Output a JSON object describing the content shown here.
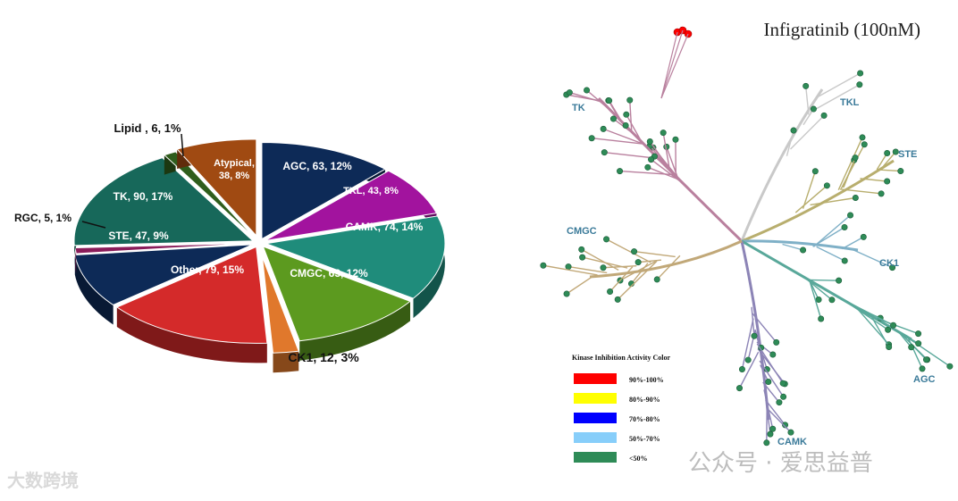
{
  "chart_data": [
    {
      "type": "pie",
      "slices": [
        {
          "name": "AGC",
          "value": 63,
          "pct": 12,
          "label": "AGC, 63, 12%",
          "color": "#0d2a57"
        },
        {
          "name": "TKL",
          "value": 43,
          "pct": 8,
          "label": "TKL, 43, 8%",
          "color": "#a2139e"
        },
        {
          "name": "CAMK",
          "value": 74,
          "pct": 14,
          "label": "CAMK, 74, 14%",
          "color": "#1f8c7b"
        },
        {
          "name": "CMGC",
          "value": 63,
          "pct": 12,
          "label": "CMGC, 63, 12%",
          "color": "#5c9a1f"
        },
        {
          "name": "CK1",
          "value": 12,
          "pct": 3,
          "label": "CK1, 12, 3%",
          "color": "#e0782c"
        },
        {
          "name": "Other",
          "value": 79,
          "pct": 15,
          "label": "Other, 79, 15%",
          "color": "#d42a2a"
        },
        {
          "name": "STE",
          "value": 47,
          "pct": 9,
          "label": "STE, 47, 9%",
          "color": "#0d2a57"
        },
        {
          "name": "RGC",
          "value": 5,
          "pct": 1,
          "label": "RGC, 5, 1%",
          "color": "#8a1c5a"
        },
        {
          "name": "TK",
          "value": 90,
          "pct": 17,
          "label": "TK, 90, 17%",
          "color": "#17685a"
        },
        {
          "name": "Lipid",
          "value": 6,
          "pct": 1,
          "label": "Lipid , 6, 1%",
          "color": "#2f5d1c"
        },
        {
          "name": "Atypical",
          "value": 38,
          "pct": 8,
          "label_lines": [
            "Atypical,",
            "38, 8%"
          ],
          "color": "#a04a12"
        }
      ]
    },
    {
      "type": "tree",
      "title": "Infigratinib (100nM)",
      "group_labels": [
        "TK",
        "TKL",
        "STE",
        "CK1",
        "AGC",
        "CAMK",
        "CMGC"
      ],
      "legend": {
        "title": "Kinase Inhibition Activity Color",
        "items": [
          {
            "label": "90%-100%",
            "color": "#ff0000"
          },
          {
            "label": "80%-90%",
            "color": "#ffff00"
          },
          {
            "label": "70%-80%",
            "color": "#0000ff"
          },
          {
            "label": "50%-70%",
            "color": "#87cefa"
          },
          {
            "label": "<50%",
            "color": "#2e8b57"
          }
        ]
      }
    }
  ],
  "watermark_left": "大数跨境",
  "watermark_right": "公众号 · 爱思益普"
}
